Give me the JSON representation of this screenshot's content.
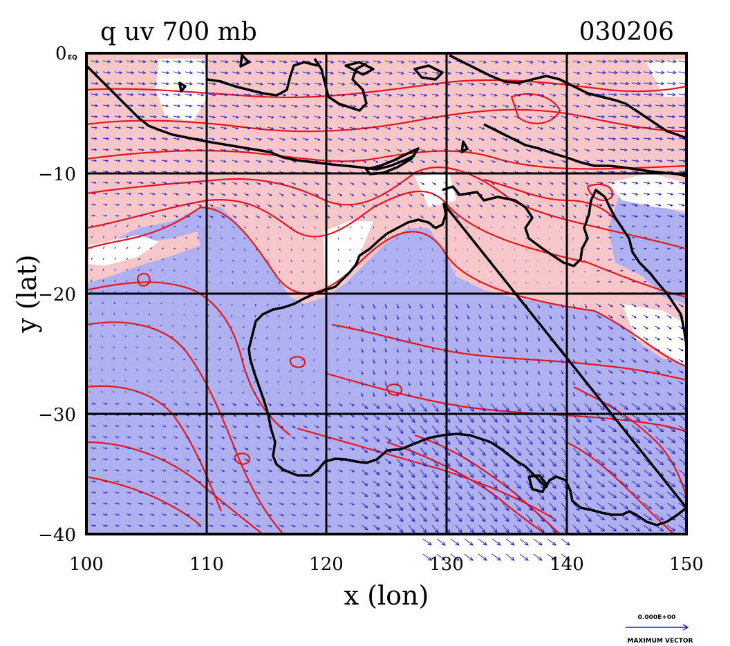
{
  "plot": {
    "title_left": "q uv 700 mb",
    "title_right": "030206",
    "xlabel": "x (lon)",
    "ylabel": "y (lat)",
    "corner_label": "0 EQ",
    "legend_value": "0.000E+00",
    "legend_text": "MAXIMUM VECTOR"
  },
  "axes": {
    "x_ticks": [
      "100",
      "110",
      "120",
      "130",
      "140",
      "150"
    ],
    "y_ticks": [
      "0",
      "−10",
      "−20",
      "−30",
      "−40"
    ],
    "x_range": [
      100,
      150
    ],
    "y_range": [
      -40,
      0
    ]
  },
  "colors": {
    "pink_fill": "#f7c6c8",
    "blue_fill": "#aeb0ef",
    "contour": "#e8141b",
    "vector": "#1a1ad0",
    "coast": "#000000"
  },
  "map": {
    "field": "q (specific humidity)",
    "vectors": "uv wind at 700 mb",
    "region": "Australia / Maritime Continent"
  }
}
